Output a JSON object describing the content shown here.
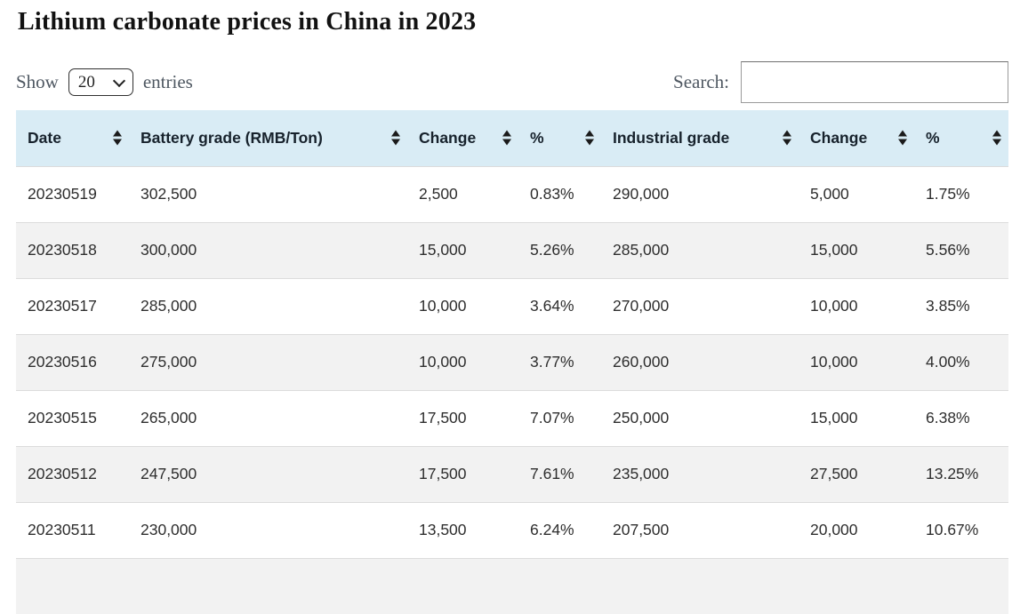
{
  "title": "Lithium carbonate prices in China in 2023",
  "controls": {
    "show_label": "Show",
    "entries_label": "entries",
    "page_size": "20",
    "search_label": "Search:",
    "search_value": ""
  },
  "table": {
    "columns": [
      {
        "key": "date",
        "label": "Date"
      },
      {
        "key": "battery-grade",
        "label": "Battery grade (RMB/Ton)"
      },
      {
        "key": "battery-change",
        "label": "Change"
      },
      {
        "key": "battery-percent",
        "label": "%"
      },
      {
        "key": "industrial-grade",
        "label": "Industrial grade"
      },
      {
        "key": "industrial-change",
        "label": "Change"
      },
      {
        "key": "industrial-percent",
        "label": "%"
      }
    ],
    "rows": [
      [
        "20230519",
        "302,500",
        "2,500",
        "0.83%",
        "290,000",
        "5,000",
        "1.75%"
      ],
      [
        "20230518",
        "300,000",
        "15,000",
        "5.26%",
        "285,000",
        "15,000",
        "5.56%"
      ],
      [
        "20230517",
        "285,000",
        "10,000",
        "3.64%",
        "270,000",
        "10,000",
        "3.85%"
      ],
      [
        "20230516",
        "275,000",
        "10,000",
        "3.77%",
        "260,000",
        "10,000",
        "4.00%"
      ],
      [
        "20230515",
        "265,000",
        "17,500",
        "7.07%",
        "250,000",
        "15,000",
        "6.38%"
      ],
      [
        "20230512",
        "247,500",
        "17,500",
        "7.61%",
        "235,000",
        "27,500",
        "13.25%"
      ],
      [
        "20230511",
        "230,000",
        "13,500",
        "6.24%",
        "207,500",
        "20,000",
        "10.67%"
      ]
    ]
  },
  "colors": {
    "header_bg": "#d9ecf5",
    "stripe_bg": "#f2f2f2",
    "row_border": "#dcdcdc",
    "table_text": "#2e2e2e",
    "muted_text": "#4e5761",
    "sort_icon": "#1b1b1b"
  }
}
